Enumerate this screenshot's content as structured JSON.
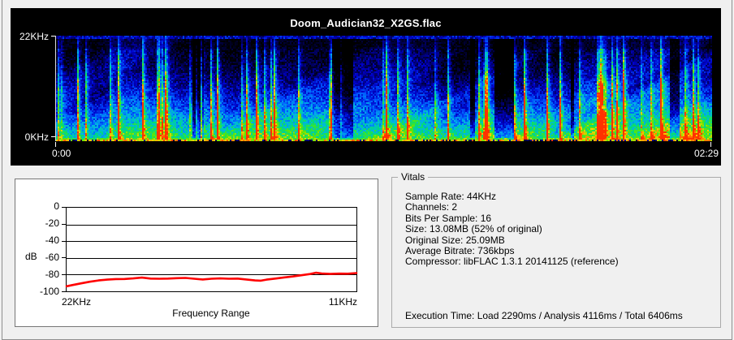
{
  "window": {
    "bg": "#f0f0f0",
    "frame_color": "#8f8f8f"
  },
  "spectrogram_panel": {
    "title": "Doom_Audician32_X2GS.flac",
    "freq_axis_max": "22KHz",
    "freq_axis_min": "0KHz",
    "time_start": "0:00",
    "time_end": "02:29",
    "bg": "#000000",
    "text_color": "#ffffff"
  },
  "db_chart": {
    "y_axis_label": "dB",
    "x_axis_label": "Frequency Range",
    "x_start_label": "22KHz",
    "x_end_label": "11KHz",
    "y_ticks": [
      "0",
      "-20",
      "-40",
      "-60",
      "-80",
      "-100"
    ],
    "line_color": "#ff0000"
  },
  "vitals": {
    "title": "Vitals",
    "lines": [
      "Sample Rate: 44KHz",
      "Channels: 2",
      "Bits Per Sample: 16",
      "Size: 13.08MB (52% of original)",
      "Original Size: 25.09MB",
      "Average Bitrate: 736kbps",
      "Compressor: libFLAC 1.3.1 20141125 (reference)"
    ],
    "execution_time": "Execution Time: Load 2290ms / Analysis 4116ms / Total 6406ms"
  },
  "chart_data": [
    {
      "type": "line",
      "title": "",
      "xlabel": "Frequency Range",
      "ylabel": "dB",
      "x_axis_labels": [
        "22KHz",
        "11KHz"
      ],
      "ylim": [
        -100,
        0
      ],
      "y_ticks": [
        0,
        -20,
        -40,
        -60,
        -80,
        -100
      ],
      "grid": true,
      "legend": false,
      "series": [
        {
          "name": "frequency-response",
          "color": "#ff0000",
          "points": [
            [
              0.0,
              -94.0
            ],
            [
              0.02,
              -92.5
            ],
            [
              0.05,
              -90.5
            ],
            [
              0.08,
              -88.5
            ],
            [
              0.11,
              -87.0
            ],
            [
              0.14,
              -86.0
            ],
            [
              0.17,
              -85.3
            ],
            [
              0.2,
              -85.2
            ],
            [
              0.23,
              -84.6
            ],
            [
              0.26,
              -83.6
            ],
            [
              0.29,
              -84.8
            ],
            [
              0.32,
              -85.0
            ],
            [
              0.35,
              -84.8
            ],
            [
              0.38,
              -84.3
            ],
            [
              0.41,
              -84.0
            ],
            [
              0.44,
              -85.0
            ],
            [
              0.47,
              -85.8
            ],
            [
              0.5,
              -85.0
            ],
            [
              0.53,
              -84.6
            ],
            [
              0.56,
              -85.0
            ],
            [
              0.59,
              -84.8
            ],
            [
              0.62,
              -85.8
            ],
            [
              0.65,
              -87.0
            ],
            [
              0.67,
              -87.3
            ],
            [
              0.69,
              -86.0
            ],
            [
              0.72,
              -84.8
            ],
            [
              0.75,
              -83.4
            ],
            [
              0.78,
              -82.2
            ],
            [
              0.81,
              -80.8
            ],
            [
              0.84,
              -79.3
            ],
            [
              0.86,
              -77.8
            ],
            [
              0.88,
              -78.6
            ],
            [
              0.91,
              -79.2
            ],
            [
              0.94,
              -78.8
            ],
            [
              0.97,
              -78.9
            ],
            [
              1.0,
              -78.2
            ]
          ]
        }
      ]
    },
    {
      "type": "heatmap",
      "subtype": "spectrogram",
      "title": "Doom_Audician32_X2GS.flac",
      "x_range_labels": [
        "0:00",
        "02:29"
      ],
      "y_range_labels": [
        "0KHz",
        "22KHz"
      ],
      "seed": 1337,
      "colormap": [
        [
          0.0,
          "#000000"
        ],
        [
          0.14,
          "#00004a"
        ],
        [
          0.3,
          "#0000c8"
        ],
        [
          0.45,
          "#0055ff"
        ],
        [
          0.58,
          "#00b4e6"
        ],
        [
          0.7,
          "#00dc78"
        ],
        [
          0.82,
          "#64e600"
        ],
        [
          0.9,
          "#ffd200"
        ],
        [
          1.0,
          "#ff3200"
        ]
      ]
    }
  ]
}
